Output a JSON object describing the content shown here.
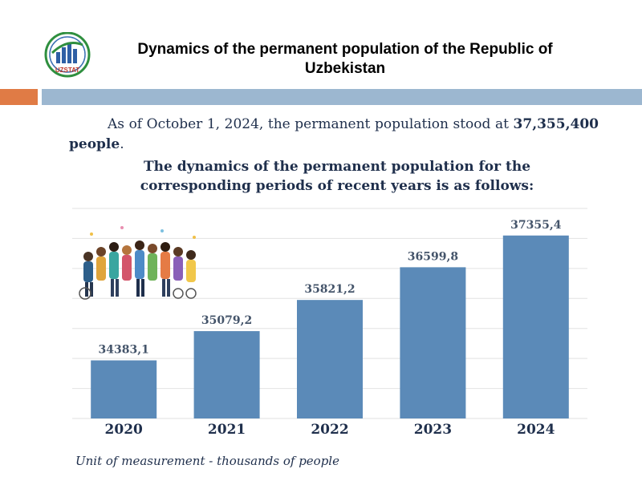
{
  "header": {
    "logo_text": "UZSTAT",
    "title": "Dynamics of the permanent population of the Republic of Uzbekistan"
  },
  "intro": {
    "text_before": "As of October 1, 2024, the permanent population stood at ",
    "highlight": "37,355,400 people",
    "text_after": "."
  },
  "subtitle": "The dynamics of the permanent population for the corresponding periods of recent years is as follows:",
  "chart_data": {
    "type": "bar",
    "categories": [
      "2020",
      "2021",
      "2022",
      "2023",
      "2024"
    ],
    "values": [
      34383.1,
      35079.2,
      35821.2,
      36599.8,
      37355.4
    ],
    "value_labels": [
      "34383,1",
      "35079,2",
      "35821,2",
      "36599,8",
      "37355,4"
    ],
    "title": "",
    "xlabel": "",
    "ylabel": "",
    "ylim": [
      33000,
      38000
    ],
    "grid": true,
    "bar_color": "#5b8ab8"
  },
  "unit_note": "Unit of measurement - thousands of people",
  "colors": {
    "accent_orange": "#e07b45",
    "accent_blue": "#9cb7d0",
    "text": "#1f2f4c",
    "bar": "#5b8ab8"
  }
}
